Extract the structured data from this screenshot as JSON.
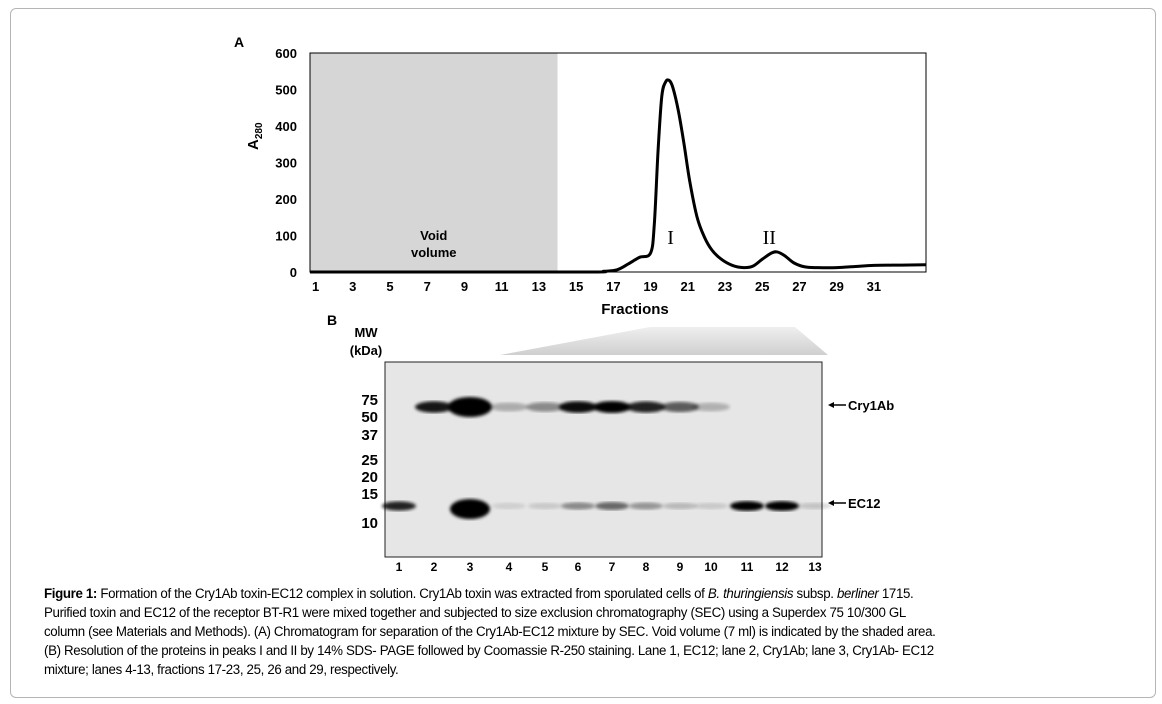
{
  "figure": {
    "panel_a_label": "A",
    "panel_b_label": "B"
  },
  "chart_data": {
    "type": "line",
    "xlabel": "Fractions",
    "ylabel": "A",
    "ylabel_subscript": "280",
    "xticks": [
      1,
      3,
      5,
      7,
      9,
      11,
      13,
      15,
      17,
      19,
      21,
      23,
      25,
      27,
      29,
      31
    ],
    "yticks": [
      0,
      100,
      200,
      300,
      400,
      500,
      600
    ],
    "xlim": [
      0.7,
      33.8
    ],
    "ylim": [
      0,
      600
    ],
    "grid": false,
    "shaded_region": {
      "x": [
        0.7,
        14
      ],
      "label_lines": [
        "Void",
        "volume"
      ],
      "color": "#d6d6d6"
    },
    "annotations": [
      {
        "text": "I",
        "x": 20.4,
        "y": 110
      },
      {
        "text": "II",
        "x": 25.7,
        "y": 110
      }
    ],
    "series": [
      {
        "color": "#000000",
        "x": [
          0.7,
          15,
          16.5,
          17.2,
          17.8,
          18.4,
          19.0,
          19.2,
          19.4,
          19.6,
          19.8,
          20.0,
          20.2,
          20.5,
          20.8,
          21.1,
          21.5,
          21.9,
          22.3,
          22.8,
          23.4,
          24.0,
          24.5,
          25.0,
          25.5,
          25.8,
          26.2,
          26.7,
          27.3,
          28.0,
          29.0,
          30.0,
          31.0,
          32.5,
          33.8
        ],
        "y": [
          0,
          0,
          2,
          6,
          22,
          40,
          52,
          130,
          330,
          480,
          520,
          525,
          505,
          440,
          350,
          250,
          150,
          95,
          60,
          35,
          18,
          12,
          16,
          35,
          52,
          55,
          45,
          25,
          14,
          12,
          12,
          15,
          18,
          19,
          20
        ]
      }
    ]
  },
  "gel": {
    "mw_title": "MW",
    "mw_unit": "(kDa)",
    "mw_markers": [
      "75",
      "50",
      "37",
      "25",
      "20",
      "15",
      "10"
    ],
    "lanes": [
      "1",
      "2",
      "3",
      "4",
      "5",
      "6",
      "7",
      "8",
      "9",
      "10",
      "11",
      "12",
      "13"
    ],
    "band_labels": {
      "cry1ab": "Cry1Ab",
      "ec12": "EC12"
    },
    "cry1ab_intensity": [
      0,
      0.85,
      1,
      0.2,
      0.35,
      0.9,
      0.95,
      0.8,
      0.55,
      0.18,
      0,
      0,
      0
    ],
    "ec12_intensity": [
      0.8,
      0,
      1,
      0.05,
      0.08,
      0.35,
      0.5,
      0.3,
      0.15,
      0.08,
      0.95,
      0.95,
      0.1
    ]
  },
  "caption": {
    "lines": [
      [
        {
          "t": "Figure 1:",
          "b": true
        },
        {
          "t": " Formation of the Cry1Ab toxin-EC12 complex in solution. Cry1Ab toxin was extracted from sporulated cells of "
        },
        {
          "t": "B. thuringiensis",
          "i": true
        },
        {
          "t": " subsp. "
        },
        {
          "t": "berliner",
          "i": true
        },
        {
          "t": " 1715."
        }
      ],
      [
        {
          "t": "Purified  toxin  and EC12 of the receptor BT-R1 were mixed together and subjected to size exclusion  chromatography (SEC) using a Superdex 75 10/300 GL"
        }
      ],
      [
        {
          "t": "column (see Materials and Methods). (A) Chromatogram for separation of the Cry1Ab-EC12 mixture by SEC. Void volume (7 ml) is indicated by the shaded area."
        }
      ],
      [
        {
          "t": "(B) Resolution of the proteins in peaks I and II by 14% SDS- PAGE followed by Coomassie R-250 staining. Lane 1, EC12; lane 2, Cry1Ab; lane 3, Cry1Ab- EC12"
        }
      ],
      [
        {
          "t": "mixture; lanes 4-13, fractions 17-23, 25, 26 and 29, respectively."
        }
      ]
    ]
  }
}
